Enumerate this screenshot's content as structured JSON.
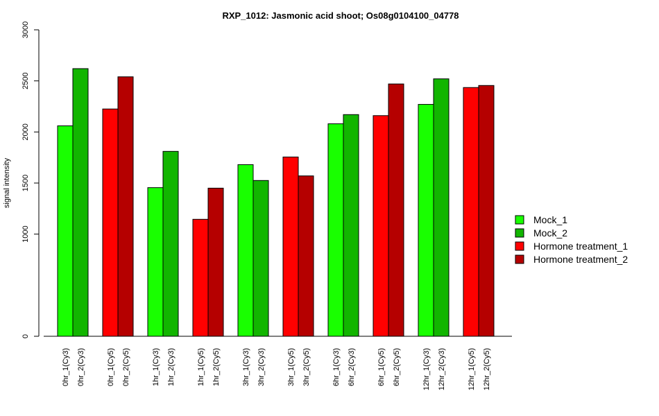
{
  "chart_data": {
    "type": "bar",
    "title": "RXP_1012: Jasmonic acid shoot; Os08g0104100_04778",
    "xlabel": "",
    "ylabel": "signal intensity",
    "ylim": [
      0,
      3000
    ],
    "y_ticks": [
      0,
      1000,
      1500,
      2000,
      2500,
      3000
    ],
    "grid": false,
    "legend_position": "right",
    "series_colors": {
      "Mock_1": "#19FF00",
      "Mock_2": "#12B500",
      "Hormone treatment_1": "#FF0000",
      "Hormone treatment_2": "#B50000"
    },
    "legend": [
      "Mock_1",
      "Mock_2",
      "Hormone treatment_1",
      "Hormone treatment_2"
    ],
    "groups": [
      {
        "bars": [
          {
            "label": "0hr_1(Cy3)",
            "value": 2060,
            "series": "Mock_1"
          },
          {
            "label": "0hr_2(Cy3)",
            "value": 2620,
            "series": "Mock_2"
          }
        ]
      },
      {
        "bars": [
          {
            "label": "0hr_1(Cy5)",
            "value": 2225,
            "series": "Hormone treatment_1"
          },
          {
            "label": "0hr_2(Cy5)",
            "value": 2540,
            "series": "Hormone treatment_2"
          }
        ]
      },
      {
        "bars": [
          {
            "label": "1hr_1(Cy3)",
            "value": 1455,
            "series": "Mock_1"
          },
          {
            "label": "1hr_2(Cy3)",
            "value": 1810,
            "series": "Mock_2"
          }
        ]
      },
      {
        "bars": [
          {
            "label": "1hr_1(Cy5)",
            "value": 1145,
            "series": "Hormone treatment_1"
          },
          {
            "label": "1hr_2(Cy5)",
            "value": 1450,
            "series": "Hormone treatment_2"
          }
        ]
      },
      {
        "bars": [
          {
            "label": "3hr_1(Cy3)",
            "value": 1680,
            "series": "Mock_1"
          },
          {
            "label": "3hr_2(Cy3)",
            "value": 1525,
            "series": "Mock_2"
          }
        ]
      },
      {
        "bars": [
          {
            "label": "3hr_1(Cy5)",
            "value": 1755,
            "series": "Hormone treatment_1"
          },
          {
            "label": "3hr_2(Cy5)",
            "value": 1570,
            "series": "Hormone treatment_2"
          }
        ]
      },
      {
        "bars": [
          {
            "label": "6hr_1(Cy3)",
            "value": 2080,
            "series": "Mock_1"
          },
          {
            "label": "6hr_2(Cy3)",
            "value": 2170,
            "series": "Mock_2"
          }
        ]
      },
      {
        "bars": [
          {
            "label": "6hr_1(Cy5)",
            "value": 2160,
            "series": "Hormone treatment_1"
          },
          {
            "label": "6hr_2(Cy5)",
            "value": 2470,
            "series": "Hormone treatment_2"
          }
        ]
      },
      {
        "bars": [
          {
            "label": "12hr_1(Cy3)",
            "value": 2270,
            "series": "Mock_1"
          },
          {
            "label": "12hr_2(Cy3)",
            "value": 2520,
            "series": "Mock_2"
          }
        ]
      },
      {
        "bars": [
          {
            "label": "12hr_1(Cy5)",
            "value": 2435,
            "series": "Hormone treatment_1"
          },
          {
            "label": "12hr_2(Cy5)",
            "value": 2455,
            "series": "Hormone treatment_2"
          }
        ]
      }
    ]
  }
}
